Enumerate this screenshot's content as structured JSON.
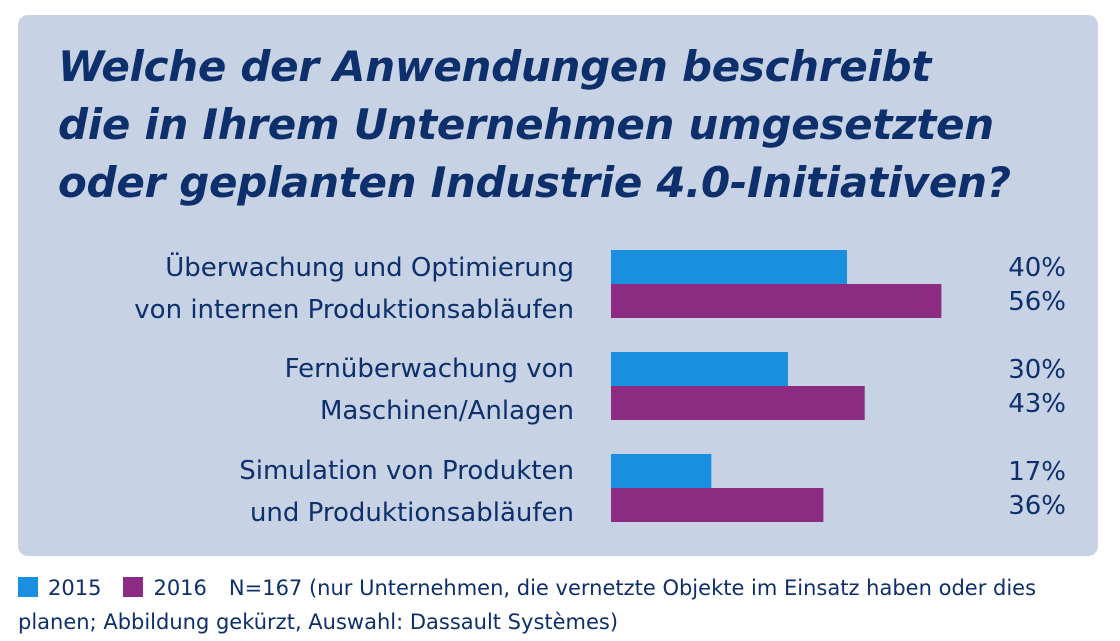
{
  "title_lines": [
    "Welche der Anwendungen beschreibt",
    "die in Ihrem Unternehmen umgesetzten",
    "oder geplanten Industrie 4.0-Initiativen?"
  ],
  "colors": {
    "card_bg": "#c7d3e4",
    "text": "#0d2f6b",
    "series_2015": "#1a8fe0",
    "series_2016": "#8b2c82"
  },
  "legend": {
    "s2015": "2015",
    "s2016": "2016",
    "note": "N=167 (nur Unternehmen, die vernetzte Objekte im Einsatz haben oder dies planen; Abbildung gekürzt, Auswahl: Dassault Systèmes)"
  },
  "chart_data": {
    "type": "bar",
    "orientation": "horizontal",
    "title": "Welche der Anwendungen beschreibt die in Ihrem Unternehmen umgesetzten oder geplanten Industrie 4.0-Initiativen?",
    "categories": [
      [
        "Überwachung und Optimierung",
        "von internen Produktionsabläufen"
      ],
      [
        "Fernüberwachung von",
        "Maschinen/Anlagen"
      ],
      [
        "Simulation von Produkten",
        "und Produktionsabläufen"
      ]
    ],
    "series": [
      {
        "name": "2015",
        "values": [
          40,
          30,
          17
        ],
        "labels": [
          "40%",
          "30%",
          "17%"
        ],
        "color": "#1a8fe0"
      },
      {
        "name": "2016",
        "values": [
          56,
          43,
          36
        ],
        "labels": [
          "56%",
          "43%",
          "36%"
        ],
        "color": "#8b2c82"
      }
    ],
    "unit": "%",
    "xlim": [
      0,
      100
    ],
    "grid": false,
    "legend_position": "bottom-left"
  }
}
